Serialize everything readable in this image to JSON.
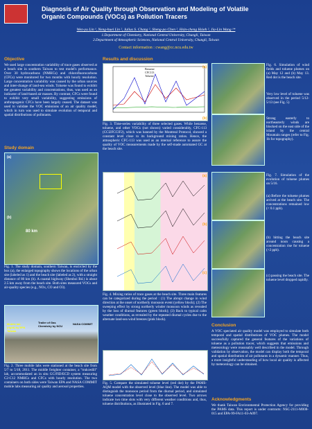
{
  "header": {
    "title": "Diagnosis of Air Quality through Observation and Modeling of Volatile Organic Compounds (VOCs) as Pollution Tracers",
    "authors": "Wen-yu Lin ¹, Neng-huei Lin ², Julius S. Chang ², Sheng-po Chen ², Hsin-cheng Hsieh ², Jia-Lin Wang ¹*",
    "affiliation_1": "1.Department of Chemistry, National Central University, Chungli, Taiwan",
    "affiliation_2": "2.Department of Atmospheric Sciences, National Central University, Chungli, Taiwan",
    "contact": "Contact information : cwang@cc.ncu.edu.tw"
  },
  "objective": {
    "heading": "Objective",
    "text": "We used large concentration variability of trace gases observed at a beach site in southern Taiwan to test model's performance. Over 30 hydrocarbons (NMHCs) and chlorofluorocarbons (CFCs) were monitored for two months with hourly resolution. Large concentration variability was caused by the urban sources and inter-change of land-sea winds. Toluene was found to exhibit the greatest variability and concentrations, thus, was used as an indicator of land-based air masses. By contrast, CFCs were found to exhibit very small variability, suggesting emissions of anthropogenic CFCs have been largely ceased. The dataset was used to validate the VOC emissions of an air quality model, which in turn was used to simulate evolution of temporal and spatial distributions of pollutants."
  },
  "study_domain": {
    "heading": "Study domain",
    "map_label_a": "(a)",
    "map_label_b": "(b)",
    "distance": "80 km",
    "caption": "Fig. 1. The study domain, southern Taiwan, is encircled by the box (a), the enlarged topography shows the locations of the urban site (labeled as 1) and the beach site (labeled as 2), with a straight distance of 80 km (b). A coastal highway (Shenboi Rd.) is about 2.5 km away from the beach site. Both sites measured VOCs and air-quality species (e.g., NOx, CO and O3)."
  },
  "fig2": {
    "label_epa": "Mobile lab (right) by EPA Taiwan",
    "label_ncu": "Trailer of Gas Chemistry by NCU",
    "label_nasa": "NASA COMMIT",
    "caption": "Fig. 2. Three mobile labs were stationed at the beach site from 5/7 to 5/18, 2011. The middle freighter container, a \"trukcedill\" lab, accommodated an in situ GC/FID/ECD system measuring C2-C12 NMHCs and CFCs with hourly resolution. The two containers on both sides were Taiwan EPA and NASA COMMIT mobile labs measuring air quality and aerosol properties."
  },
  "results": {
    "heading": "Results and discussion",
    "fig3": {
      "legend": [
        "Benzene",
        "CFC113",
        "Toluene"
      ],
      "caption": "Fig. 3. Time-series variability of three selected gases. While benzene, toluene, and other VOCs (not shown) varied considerably, CFC-113 (CCl2FCClF2), which was banned by the Montreal Protocol, showed a constant level close to its background mixing ratios. Hence, the atmospheric CFC-113 was used as an internal reference to assure the quality of VOC measurements made by the self-made automated GC at the beach site."
    },
    "fig4": {
      "caption": "Fig. 4. Mixing ratios of trace gases at the beach site. Three main features can be categorized during the period : (1) The abrupt change in wind direction at the onset of northerly monsoon event (yellow block); (2) The sweeping effect by strong northerly winder monsoon winds as revealed by the loss of diurnal features (green block); (3) Back to typical calm weather conditions, as revealed by the repeated diurnal cycles due to the alternate land-sea wind breezes (pink block)."
    },
    "fig5": {
      "caption": "Fig. 5. Compare the simulated toluene level (red dot) by the PAMS-AQM model with the observed level (blue line). The model was able to distinguish the monsoon period from the diurnal period, and simulated toluene concentration level close to the observed level. Two arrows indicate two time slots with very different weather conditions and, thus, toluene distributions, as illustrated in Fig. 6 and 7."
    },
    "fig6": {
      "label_a": "(a)",
      "label_b": "(b)",
      "caption": "Fig. 6. Simulation of wind fields and toluene plumes on (a) May 12 and (b) May 13. Red dot is the beach site.",
      "note_1": "Very low level of toluene was observed in the period 5/12-5/13 (see Fig. 5)",
      "note_2": "Strong easterly to northeasterly winds are blocked on the east side of the island by the central Mountain ranges (refer to Fig. 1b for topography)."
    },
    "fig7": {
      "label_a": "(a)",
      "label_b": "(b)",
      "label_c": "(c)",
      "caption": "Fig. 7. Simulation of the evolution of toluene plumes on 5/16.",
      "note_a": "(a) Before the toluene plumes arrived at the beach site. The concentrations remained low (< 0.1 ppb).",
      "note_b": "(b) hitting the beach site around noon causing a concentration rise for toluene (>2 ppb).",
      "note_c": "(c) passing the beach site. The toluene level dropped rapidly."
    }
  },
  "conclusion": {
    "heading": "Conclusion",
    "text": "A VOC speciated air quality model was employed to simulate both temporal and spatial distributions of VOC plumes. The model successfully captured the general features of the variations of toluene as a pollution tracer, which suggests that emissions and meteorology were reasonably well described in the model. Through validation by observation, the model can display both the temporal and spatial distribution of air pollutants in a dynamic manner. Thus, a more insightful understanding of how local air quality is affected by meteorology can be obtained."
  },
  "acknowledgments": {
    "heading": "Acknowledgments",
    "text": "We thank Taiwan Environmental Protection Agency for providing the PAMS data. This report is under contracts: NSC-2111-M008-015 and EPA-99-FA11-03-A097."
  }
}
